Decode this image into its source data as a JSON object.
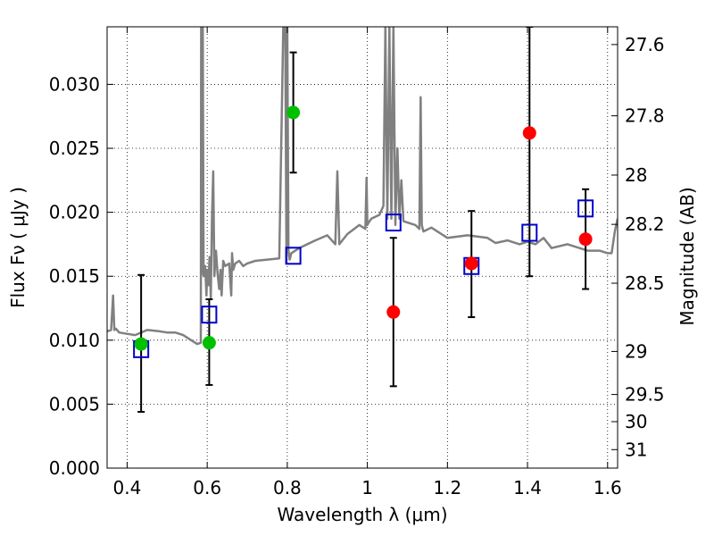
{
  "chart_data": {
    "type": "scatter",
    "title": "",
    "xlabel": "Wavelength  λ (μm)",
    "ylabel": "Flux  Fν  ( μJy )",
    "y2label": "Magnitude (AB)",
    "xlim": [
      0.35,
      1.625
    ],
    "ylim": [
      0.0,
      0.0345
    ],
    "grid": true,
    "xticks": [
      0.4,
      0.6,
      0.8,
      1.0,
      1.2,
      1.4,
      1.6
    ],
    "xtick_labels": [
      "0.4",
      "0.6",
      "0.8",
      "1",
      "1.2",
      "1.4",
      "1.6"
    ],
    "yticks": [
      0.0,
      0.005,
      0.01,
      0.015,
      0.02,
      0.025,
      0.03
    ],
    "ytick_labels": [
      "0.000",
      "0.005",
      "0.010",
      "0.015",
      "0.020",
      "0.025",
      "0.030"
    ],
    "y2ticks": [
      27.6,
      27.8,
      28.0,
      28.2,
      28.5,
      29.0,
      29.5,
      30.0,
      31.0
    ],
    "y2tick_labels": [
      "27.6",
      "27.8",
      "28",
      "28.2",
      "28.5",
      "29",
      "29.5",
      "30",
      "31"
    ],
    "colors": {
      "spectrum": "#808080",
      "detection": "#00c000",
      "upper": "#ff0000",
      "model": "#0000cc",
      "errorbar": "#000000"
    },
    "spectrum": {
      "x": [
        0.35,
        0.36,
        0.365,
        0.368,
        0.372,
        0.38,
        0.4,
        0.42,
        0.45,
        0.48,
        0.5,
        0.52,
        0.54,
        0.56,
        0.575,
        0.584,
        0.585,
        0.587,
        0.589,
        0.591,
        0.595,
        0.598,
        0.6,
        0.603,
        0.606,
        0.609,
        0.612,
        0.615,
        0.618,
        0.622,
        0.626,
        0.63,
        0.633,
        0.636,
        0.64,
        0.645,
        0.655,
        0.66,
        0.662,
        0.665,
        0.67,
        0.68,
        0.69,
        0.7,
        0.72,
        0.75,
        0.78,
        0.79,
        0.795,
        0.798,
        0.8,
        0.803,
        0.806,
        0.81,
        0.83,
        0.85,
        0.87,
        0.9,
        0.92,
        0.925,
        0.93,
        0.95,
        0.98,
        0.995,
        0.998,
        1.0,
        1.003,
        1.01,
        1.03,
        1.04,
        1.045,
        1.05,
        1.055,
        1.06,
        1.065,
        1.07,
        1.075,
        1.08,
        1.085,
        1.09,
        1.1,
        1.12,
        1.13,
        1.133,
        1.136,
        1.14,
        1.16,
        1.2,
        1.25,
        1.3,
        1.32,
        1.35,
        1.38,
        1.4,
        1.42,
        1.44,
        1.46,
        1.5,
        1.55,
        1.58,
        1.6,
        1.61,
        1.618,
        1.625
      ],
      "y": [
        0.0107,
        0.0108,
        0.0135,
        0.0108,
        0.0109,
        0.0106,
        0.0105,
        0.0104,
        0.0108,
        0.0107,
        0.0106,
        0.0106,
        0.0104,
        0.01,
        0.0097,
        0.0098,
        0.0345,
        0.0152,
        0.0345,
        0.015,
        0.0158,
        0.0135,
        0.0155,
        0.0143,
        0.0165,
        0.0133,
        0.0195,
        0.0232,
        0.015,
        0.017,
        0.0152,
        0.014,
        0.0155,
        0.0135,
        0.0162,
        0.0158,
        0.016,
        0.0135,
        0.0168,
        0.0155,
        0.016,
        0.0162,
        0.0158,
        0.016,
        0.0162,
        0.0163,
        0.0164,
        0.0345,
        0.0345,
        0.016,
        0.0345,
        0.017,
        0.0163,
        0.0168,
        0.0172,
        0.0175,
        0.0178,
        0.0182,
        0.0175,
        0.0232,
        0.0175,
        0.0183,
        0.019,
        0.0187,
        0.0227,
        0.019,
        0.0192,
        0.0195,
        0.0198,
        0.0205,
        0.0345,
        0.0195,
        0.0345,
        0.0195,
        0.0345,
        0.019,
        0.025,
        0.0195,
        0.0225,
        0.0193,
        0.0192,
        0.019,
        0.0187,
        0.029,
        0.019,
        0.0185,
        0.0188,
        0.018,
        0.0182,
        0.018,
        0.0176,
        0.0178,
        0.0175,
        0.0177,
        0.0175,
        0.018,
        0.0172,
        0.0175,
        0.017,
        0.017,
        0.0168,
        0.0168,
        0.0185,
        0.0195
      ]
    },
    "series": [
      {
        "marker": "circle-green",
        "x": [
          0.435,
          0.605,
          0.815
        ],
        "y": [
          0.0097,
          0.0098,
          0.0278
        ],
        "yerr_low": [
          0.0044,
          0.0065,
          0.0231
        ],
        "yerr_high": [
          0.0151,
          0.0132,
          0.0325
        ]
      },
      {
        "marker": "circle-red",
        "x": [
          1.065,
          1.26,
          1.405,
          1.545
        ],
        "y": [
          0.0122,
          0.016,
          0.0262,
          0.0179
        ],
        "yerr_low": [
          0.0064,
          0.0118,
          0.015,
          0.014
        ],
        "yerr_high": [
          0.018,
          0.0201,
          0.0345,
          0.0218
        ]
      },
      {
        "marker": "square-blue",
        "x": [
          0.435,
          0.605,
          0.815,
          1.065,
          1.26,
          1.405,
          1.545
        ],
        "y": [
          0.0093,
          0.012,
          0.0166,
          0.0192,
          0.0158,
          0.0184,
          0.0203
        ]
      }
    ]
  }
}
